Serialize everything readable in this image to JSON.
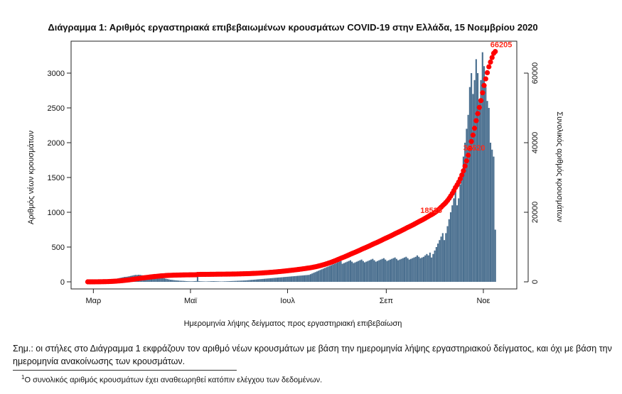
{
  "chart_data": {
    "type": "bar",
    "title": "Διάγραμμα 1: Αριθμός εργαστηριακά επιβεβαιωμένων κρουσμάτων COVID-19 στην Ελλάδα, 15 Νοεμβρίου 2020",
    "xlabel": "Ημερομηνία λήψης δείγματος προς εργαστηριακή επιβεβαίωση",
    "ylabel": "Αριθμός νέων κρουσμάτων",
    "y2label": "Συνολικός αριθμός κρουσμάτων",
    "ylim": [
      0,
      3000
    ],
    "y_ticks": [
      0,
      500,
      1000,
      1500,
      2000,
      2500,
      3000
    ],
    "y2lim": [
      0,
      60000
    ],
    "y2_ticks": [
      0,
      20000,
      40000,
      60000
    ],
    "x_ticks": [
      "Μαρ",
      "Μαϊ",
      "Ιουλ",
      "Σεπ",
      "Νοε"
    ],
    "bar_color": "#4a6f8f",
    "line_color": "#ff0000",
    "series": [
      {
        "name": "Αριθμός νέων κρουσμάτων",
        "kind": "bars",
        "x_range": [
          "2020-02-26",
          "2020-11-14"
        ],
        "values": [
          1,
          1,
          2,
          3,
          2,
          4,
          6,
          8,
          10,
          12,
          15,
          14,
          20,
          25,
          30,
          28,
          35,
          40,
          45,
          50,
          55,
          60,
          65,
          70,
          72,
          75,
          80,
          85,
          90,
          95,
          100,
          98,
          102,
          100,
          95,
          90,
          88,
          85,
          82,
          80,
          78,
          75,
          72,
          70,
          68,
          65,
          60,
          55,
          50,
          45,
          40,
          35,
          30,
          28,
          25,
          22,
          20,
          18,
          16,
          15,
          14,
          12,
          10,
          9,
          8,
          7,
          8,
          10,
          12,
          130,
          10,
          8,
          7,
          6,
          5,
          6,
          7,
          8,
          9,
          10,
          9,
          8,
          7,
          6,
          5,
          6,
          7,
          8,
          9,
          10,
          11,
          12,
          13,
          14,
          15,
          16,
          17,
          18,
          19,
          20,
          22,
          24,
          26,
          28,
          30,
          32,
          34,
          36,
          38,
          40,
          42,
          44,
          46,
          48,
          50,
          52,
          54,
          56,
          58,
          60,
          62,
          64,
          66,
          68,
          70,
          72,
          74,
          76,
          78,
          80,
          82,
          84,
          86,
          88,
          90,
          92,
          94,
          96,
          98,
          100,
          110,
          120,
          130,
          140,
          150,
          160,
          170,
          180,
          190,
          200,
          210,
          220,
          230,
          240,
          250,
          260,
          270,
          280,
          290,
          300,
          260,
          270,
          280,
          290,
          300,
          310,
          290,
          270,
          280,
          290,
          300,
          310,
          320,
          300,
          280,
          290,
          300,
          310,
          320,
          330,
          310,
          290,
          300,
          310,
          320,
          330,
          340,
          320,
          300,
          310,
          320,
          330,
          340,
          350,
          330,
          310,
          320,
          330,
          340,
          350,
          360,
          340,
          320,
          330,
          340,
          350,
          360,
          380,
          360,
          340,
          350,
          360,
          380,
          400,
          380,
          420,
          350,
          400,
          450,
          500,
          550,
          600,
          650,
          700,
          600,
          700,
          800,
          900,
          1000,
          1100,
          1200,
          1300,
          1100,
          1200,
          1400,
          1600,
          1800,
          2000,
          2200,
          2400,
          2800,
          3000,
          2700,
          2900,
          3200,
          3000,
          2600,
          2900,
          3300,
          3100,
          2800,
          2600,
          2500,
          2000,
          1900,
          1800,
          750
        ]
      },
      {
        "name": "Συνολικός αριθμός κρουσμάτων",
        "kind": "cumulative-line",
        "x_range": [
          "2020-02-26",
          "2020-11-14"
        ],
        "note": "running total of the bar values; final value 66205"
      }
    ],
    "annotations": [
      {
        "text": "18525",
        "date": "2020-10-01",
        "y2": 18525
      },
      {
        "text": "36520",
        "date": "2020-10-28",
        "y2": 36520
      },
      {
        "text": "66205",
        "date": "2020-11-14",
        "y2": 66205
      }
    ]
  },
  "notes": {
    "main": "Σημ.: οι στήλες στο Διάγραμμα 1 εκφράζουν τον αριθμό νέων κρουσμάτων με βάση την ημερομηνία λήψης εργαστηριακού δείγματος, και όχι με βάση την ημερομηνία ανακοίνωσης των κρουσμάτων.",
    "footnote_mark": "1",
    "footnote": "Ο συνολικός αριθμός κρουσμάτων έχει αναθεωρηθεί κατόπιν ελέγχου των δεδομένων."
  }
}
